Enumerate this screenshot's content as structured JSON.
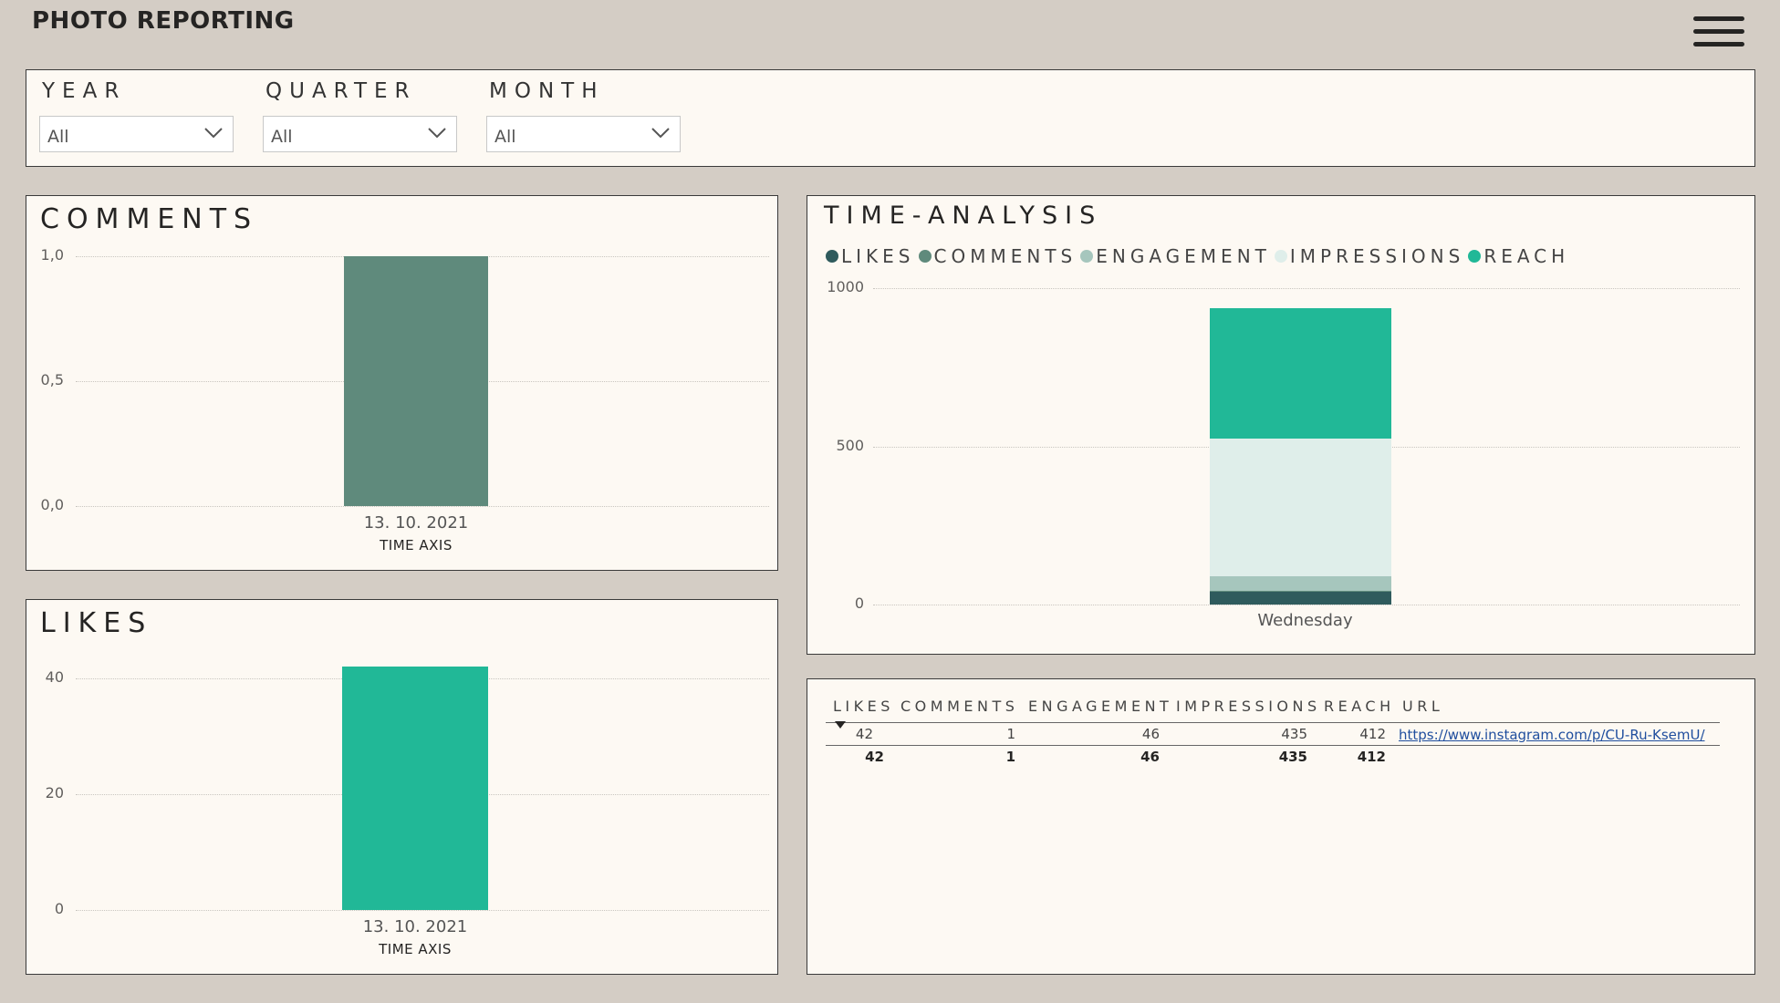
{
  "header": {
    "title": "PHOTO REPORTING",
    "menu_icon": "hamburger-icon"
  },
  "filters": {
    "year": {
      "label": "YEAR",
      "value": "All"
    },
    "quarter": {
      "label": "QUARTER",
      "value": "All"
    },
    "month": {
      "label": "MONTH",
      "value": "All"
    }
  },
  "comments_card": {
    "title": "COMMENTS"
  },
  "likes_card": {
    "title": "LIKES"
  },
  "time_card": {
    "title": "TIME-ANALYSIS",
    "legend": [
      {
        "label": "LIKES",
        "color": "#2f5b5d"
      },
      {
        "label": "COMMENTS",
        "color": "#5f8a7c"
      },
      {
        "label": "ENGAGEMENT",
        "color": "#a6c6bd"
      },
      {
        "label": "IMPRESSIONS",
        "color": "#dfeeea"
      },
      {
        "label": "REACH",
        "color": "#21b897"
      }
    ]
  },
  "table": {
    "headers": [
      "LIKES",
      "COMMENTS",
      "ENGAGEMENT",
      "IMPRESSIONS",
      "REACH",
      "URL"
    ],
    "row": [
      "42",
      "1",
      "46",
      "435",
      "412"
    ],
    "url": "https://www.instagram.com/p/CU-Ru-KsemU/",
    "totals": [
      "42",
      "1",
      "46",
      "435",
      "412"
    ]
  },
  "chart_data": [
    {
      "type": "bar",
      "title": "COMMENTS",
      "categories": [
        "13. 10. 2021"
      ],
      "values": [
        1
      ],
      "xlabel": "TIME AXIS",
      "ylabel": "",
      "ylim": [
        0,
        1
      ],
      "ticks": [
        "0,0",
        "0,5",
        "1,0"
      ],
      "color": "#5f8a7c",
      "grid": true
    },
    {
      "type": "bar",
      "title": "LIKES",
      "categories": [
        "13. 10. 2021"
      ],
      "values": [
        42
      ],
      "xlabel": "TIME AXIS",
      "ylabel": "",
      "ylim": [
        0,
        50
      ],
      "ticks": [
        "0",
        "20",
        "40"
      ],
      "color": "#21b897",
      "grid": true
    },
    {
      "type": "bar",
      "title": "TIME-ANALYSIS",
      "stacked": true,
      "categories": [
        "Wednesday"
      ],
      "series": [
        {
          "name": "LIKES",
          "values": [
            42
          ]
        },
        {
          "name": "COMMENTS",
          "values": [
            1
          ]
        },
        {
          "name": "ENGAGEMENT",
          "values": [
            46
          ]
        },
        {
          "name": "IMPRESSIONS",
          "values": [
            435
          ]
        },
        {
          "name": "REACH",
          "values": [
            412
          ]
        }
      ],
      "ylim": [
        0,
        1000
      ],
      "ticks": [
        "0",
        "500",
        "1000"
      ],
      "legend": "top-left",
      "grid": true
    }
  ]
}
